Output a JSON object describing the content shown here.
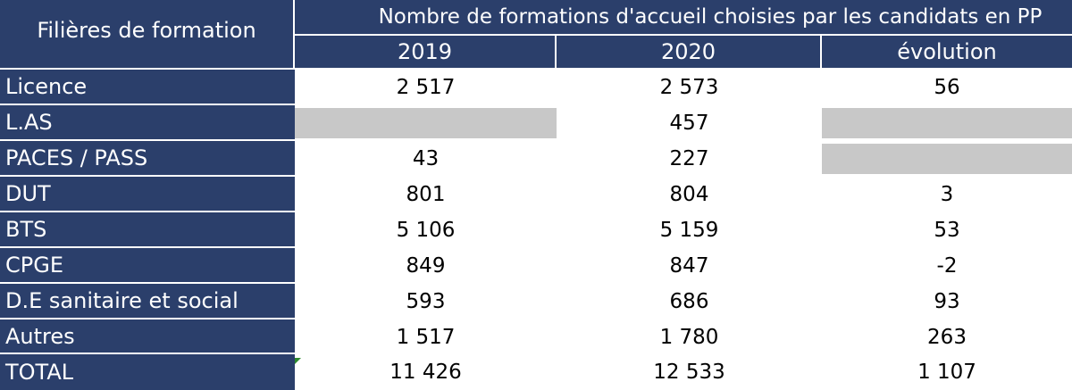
{
  "header": {
    "row_label_header": "Filières de formation",
    "group_header": "Nombre de formations d'accueil choisies par les candidats en PP",
    "columns": [
      "2019",
      "2020",
      "évolution"
    ]
  },
  "rows": [
    {
      "label": "Licence",
      "v2019": "2 517",
      "v2020": "2 573",
      "evolution": "56"
    },
    {
      "label": "L.AS",
      "v2019": "",
      "v2020": "457",
      "evolution": ""
    },
    {
      "label": "PACES / PASS",
      "v2019": "43",
      "v2020": "227",
      "evolution": ""
    },
    {
      "label": "DUT",
      "v2019": "801",
      "v2020": "804",
      "evolution": "3"
    },
    {
      "label": "BTS",
      "v2019": "5 106",
      "v2020": "5 159",
      "evolution": "53"
    },
    {
      "label": "CPGE",
      "v2019": "849",
      "v2020": "847",
      "evolution": "-2"
    },
    {
      "label": "D.E sanitaire et social",
      "v2019": "593",
      "v2020": "686",
      "evolution": "93"
    },
    {
      "label": "Autres",
      "v2019": "1 517",
      "v2020": "1 780",
      "evolution": "263"
    },
    {
      "label": "TOTAL",
      "v2019": "11 426",
      "v2020": "12 533",
      "evolution": "1 107"
    }
  ],
  "colors": {
    "header_navy": "#2b3f6b",
    "blank_gray": "#c8c8c8",
    "marker_green": "#2e8b2e"
  }
}
